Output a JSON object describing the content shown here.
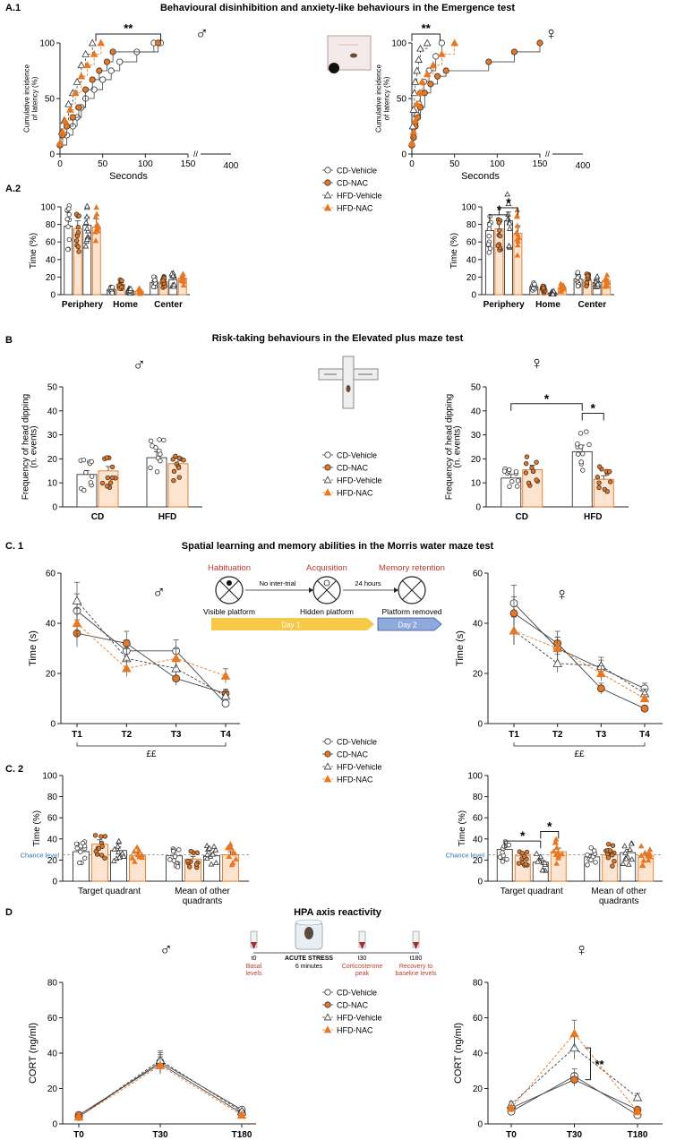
{
  "colors": {
    "orange": "#E87722",
    "dark_red": "#C0392B",
    "blue": "#2E75B6",
    "yellow": "#F6C94B",
    "blue_bar": "#8EA9DB"
  },
  "sections": {
    "a1": {
      "letter": "A.1",
      "title": "Behavioural disinhibition and anxiety-like behaviours in the Emergence test"
    },
    "a2": {
      "letter": "A.2"
    },
    "b": {
      "letter": "B",
      "title": "Risk-taking behaviours in the Elevated plus maze test"
    },
    "c1": {
      "letter": "C. 1",
      "title": "Spatial learning and memory abilities in the Morris water maze test"
    },
    "c2": {
      "letter": "C. 2"
    },
    "d": {
      "letter": "D",
      "title": "HPA axis reactivity"
    }
  },
  "symbols": {
    "male": "♂",
    "female": "♀"
  },
  "legend": [
    "CD-Vehicle",
    "CD-NAC",
    "HFD-Vehicle",
    "HFD-NAC"
  ],
  "mwm_protocol": {
    "habituation": "Habituation",
    "acquisition": "Acquisition",
    "memory_retention": "Memory retention",
    "no_inter_trial": "No inter-trial",
    "hours": "24 hours",
    "visible": "Visible platform",
    "hidden": "Hidden platform",
    "removed": "Platform removed",
    "day1": "Day 1",
    "day2": "Day 2"
  },
  "stress_protocol": {
    "acute": "ACUTE STRESS",
    "minutes": "6 minutes",
    "timepoints": [
      {
        "t": "t0",
        "label1": "Basal",
        "label2": "levels"
      },
      {
        "t": "t30",
        "label1": "Corticosterone",
        "label2": "peak"
      },
      {
        "t": "t180",
        "label1": "Recovery to",
        "label2": "baseline levels"
      }
    ]
  },
  "chart_data": [
    {
      "id": "a1_male",
      "type": "line",
      "title": "",
      "xlabel": "Seconds",
      "ylabel": "Cumulative incidence of latency (%)",
      "xlim": [
        0,
        150
      ],
      "xticks": [
        0,
        50,
        100,
        150
      ],
      "break_label": "400",
      "ylim": [
        0,
        100
      ],
      "yticks": [
        0,
        50,
        100
      ],
      "significance": "**",
      "series": [
        {
          "name": "CD-Vehicle",
          "x": [
            0,
            8,
            15,
            20,
            25,
            30,
            40,
            50,
            60,
            70,
            90,
            110,
            118
          ],
          "y": [
            8,
            17,
            25,
            33,
            42,
            50,
            58,
            67,
            75,
            83,
            92,
            100,
            100
          ]
        },
        {
          "name": "CD-NAC",
          "x": [
            0,
            3,
            8,
            15,
            22,
            30,
            38,
            46,
            55,
            62,
            115
          ],
          "y": [
            8,
            17,
            25,
            33,
            42,
            58,
            67,
            75,
            83,
            92,
            100
          ]
        },
        {
          "name": "HFD-Vehicle",
          "x": [
            0,
            2,
            5,
            10,
            15,
            20,
            25,
            30,
            38
          ],
          "y": [
            10,
            20,
            30,
            45,
            55,
            65,
            80,
            90,
            100
          ]
        },
        {
          "name": "HFD-NAC",
          "x": [
            0,
            3,
            6,
            12,
            18,
            25,
            32,
            40,
            48
          ],
          "y": [
            10,
            20,
            30,
            40,
            55,
            70,
            80,
            90,
            100
          ]
        }
      ]
    },
    {
      "id": "a1_female",
      "type": "line",
      "title": "",
      "xlabel": "Seconds",
      "ylabel": "Cumulative incidence of latency (%)",
      "xlim": [
        0,
        150
      ],
      "xticks": [
        0,
        50,
        100,
        150
      ],
      "break_label": "400",
      "ylim": [
        0,
        100
      ],
      "yticks": [
        0,
        50,
        100
      ],
      "significance": "**",
      "series": [
        {
          "name": "CD-Vehicle",
          "x": [
            0,
            2,
            4,
            6,
            8,
            10,
            14,
            20,
            28,
            35
          ],
          "y": [
            8,
            15,
            25,
            35,
            45,
            55,
            65,
            75,
            88,
            100
          ]
        },
        {
          "name": "CD-NAC",
          "x": [
            0,
            2,
            4,
            7,
            10,
            15,
            22,
            30,
            40,
            90,
            120,
            150
          ],
          "y": [
            8,
            15,
            25,
            33,
            42,
            55,
            63,
            70,
            75,
            83,
            92,
            100
          ]
        },
        {
          "name": "HFD-Vehicle",
          "x": [
            0,
            1,
            2,
            3,
            4,
            6,
            8,
            10,
            18
          ],
          "y": [
            10,
            25,
            40,
            55,
            65,
            75,
            85,
            95,
            100
          ]
        },
        {
          "name": "HFD-NAC",
          "x": [
            0,
            2,
            4,
            6,
            9,
            12,
            18,
            25,
            35,
            50
          ],
          "y": [
            10,
            20,
            30,
            45,
            55,
            65,
            72,
            80,
            90,
            100
          ]
        }
      ]
    },
    {
      "id": "a2_male",
      "type": "bar",
      "ylabel": "Time (%)",
      "ylim": [
        0,
        100
      ],
      "yticks": [
        0,
        20,
        40,
        60,
        80,
        100
      ],
      "categories": [
        "Periphery",
        "Home",
        "Center"
      ],
      "series": [
        {
          "name": "CD-Vehicle",
          "values": [
            78,
            6,
            14
          ]
        },
        {
          "name": "CD-NAC",
          "values": [
            75,
            12,
            15
          ]
        },
        {
          "name": "HFD-Vehicle",
          "values": [
            79,
            4,
            17
          ]
        },
        {
          "name": "HFD-NAC",
          "values": [
            77,
            4,
            19
          ]
        }
      ],
      "significance": []
    },
    {
      "id": "a2_female",
      "type": "bar",
      "ylabel": "Time (%)",
      "ylim": [
        0,
        100
      ],
      "yticks": [
        0,
        20,
        40,
        60,
        80,
        100
      ],
      "categories": [
        "Periphery",
        "Home",
        "Center"
      ],
      "series": [
        {
          "name": "CD-Vehicle",
          "values": [
            73,
            9,
            18
          ]
        },
        {
          "name": "CD-NAC",
          "values": [
            75,
            6,
            17
          ]
        },
        {
          "name": "HFD-Vehicle",
          "values": [
            84,
            2,
            14
          ]
        },
        {
          "name": "HFD-NAC",
          "values": [
            70,
            8,
            16
          ]
        }
      ],
      "significance": [
        "*",
        "*"
      ]
    },
    {
      "id": "b_male",
      "type": "bar",
      "ylabel": "Frequency of head dipping (n. events)",
      "ylim": [
        0,
        50
      ],
      "yticks": [
        0,
        10,
        20,
        30,
        40,
        50
      ],
      "categories": [
        "CD",
        "HFD"
      ],
      "series": [
        {
          "name": "Vehicle",
          "values": [
            13.5,
            20.5
          ]
        },
        {
          "name": "NAC",
          "values": [
            15,
            18
          ]
        }
      ],
      "significance": []
    },
    {
      "id": "b_female",
      "type": "bar",
      "ylabel": "Frequency of head dipping (n. events)",
      "ylim": [
        0,
        50
      ],
      "yticks": [
        0,
        10,
        20,
        30,
        40,
        50
      ],
      "categories": [
        "CD",
        "HFD"
      ],
      "series": [
        {
          "name": "Vehicle",
          "values": [
            12,
            23
          ]
        },
        {
          "name": "NAC",
          "values": [
            15.5,
            11.5
          ]
        }
      ],
      "significance": [
        "*",
        "*"
      ]
    },
    {
      "id": "c1_male",
      "type": "line",
      "ylabel": "Time (s)",
      "ylim": [
        0,
        60
      ],
      "yticks": [
        0,
        20,
        40,
        60
      ],
      "categories": [
        "T1",
        "T2",
        "T3",
        "T4"
      ],
      "annotation": "££",
      "series": [
        {
          "name": "CD-Vehicle",
          "values": [
            45,
            29,
            29,
            8
          ]
        },
        {
          "name": "CD-NAC",
          "values": [
            36,
            32,
            18,
            12
          ]
        },
        {
          "name": "HFD-Vehicle",
          "values": [
            49,
            26,
            22,
            11
          ]
        },
        {
          "name": "HFD-NAC",
          "values": [
            40,
            22,
            26,
            19
          ]
        }
      ]
    },
    {
      "id": "c1_female",
      "type": "line",
      "ylabel": "Time (s)",
      "ylim": [
        0,
        60
      ],
      "yticks": [
        0,
        20,
        40,
        60
      ],
      "categories": [
        "T1",
        "T2",
        "T3",
        "T4"
      ],
      "annotation": "££",
      "series": [
        {
          "name": "CD-Vehicle",
          "values": [
            48,
            30,
            22,
            14
          ]
        },
        {
          "name": "CD-NAC",
          "values": [
            44,
            32,
            14,
            6
          ]
        },
        {
          "name": "HFD-Vehicle",
          "values": [
            37,
            24,
            23,
            12
          ]
        },
        {
          "name": "HFD-NAC",
          "values": [
            37,
            30,
            20,
            10
          ]
        }
      ]
    },
    {
      "id": "c2_male",
      "type": "bar",
      "ylabel": "Time (%)",
      "ylim": [
        0,
        100
      ],
      "yticks": [
        0,
        20,
        40,
        60,
        80,
        100
      ],
      "categories": [
        "Target quadrant",
        "Mean of other quadrants"
      ],
      "chance_level": 25,
      "chance_label": "Chance level",
      "series": [
        {
          "name": "CD-Vehicle",
          "values": [
            28,
            24
          ]
        },
        {
          "name": "CD-NAC",
          "values": [
            35,
            21
          ]
        },
        {
          "name": "HFD-Vehicle",
          "values": [
            29,
            24
          ]
        },
        {
          "name": "HFD-NAC",
          "values": [
            24,
            25
          ]
        }
      ],
      "significance": []
    },
    {
      "id": "c2_female",
      "type": "bar",
      "ylabel": "Time (%)",
      "ylim": [
        0,
        100
      ],
      "yticks": [
        0,
        20,
        40,
        60,
        80,
        100
      ],
      "categories": [
        "Target quadrant",
        "Mean of other quadrants"
      ],
      "chance_level": 25,
      "chance_label": "Chance level",
      "series": [
        {
          "name": "CD-Vehicle",
          "values": [
            30,
            23
          ]
        },
        {
          "name": "CD-NAC",
          "values": [
            24,
            25
          ]
        },
        {
          "name": "HFD-Vehicle",
          "values": [
            18,
            27
          ]
        },
        {
          "name": "HFD-NAC",
          "values": [
            28,
            24
          ]
        }
      ],
      "significance": [
        "*",
        "*"
      ]
    },
    {
      "id": "d_male",
      "type": "line",
      "ylabel": "CORT (ng/ml)",
      "ylim": [
        0,
        80
      ],
      "yticks": [
        0,
        20,
        40,
        60,
        80
      ],
      "categories": [
        "T0",
        "T30",
        "T180"
      ],
      "series": [
        {
          "name": "CD-Vehicle",
          "values": [
            4,
            35,
            8
          ]
        },
        {
          "name": "CD-NAC",
          "values": [
            5,
            34,
            6
          ]
        },
        {
          "name": "HFD-Vehicle",
          "values": [
            4,
            36,
            7
          ]
        },
        {
          "name": "HFD-NAC",
          "values": [
            4,
            33,
            5
          ]
        }
      ]
    },
    {
      "id": "d_female",
      "type": "line",
      "ylabel": "CORT (ng/ml)",
      "ylim": [
        0,
        80
      ],
      "yticks": [
        0,
        20,
        40,
        60,
        80
      ],
      "categories": [
        "T0",
        "T30",
        "T180"
      ],
      "significance": "**",
      "series": [
        {
          "name": "CD-Vehicle",
          "values": [
            7,
            27,
            5
          ]
        },
        {
          "name": "CD-NAC",
          "values": [
            9,
            25,
            8
          ]
        },
        {
          "name": "HFD-Vehicle",
          "values": [
            11,
            43,
            15
          ]
        },
        {
          "name": "HFD-NAC",
          "values": [
            9,
            51,
            7
          ]
        }
      ]
    }
  ]
}
